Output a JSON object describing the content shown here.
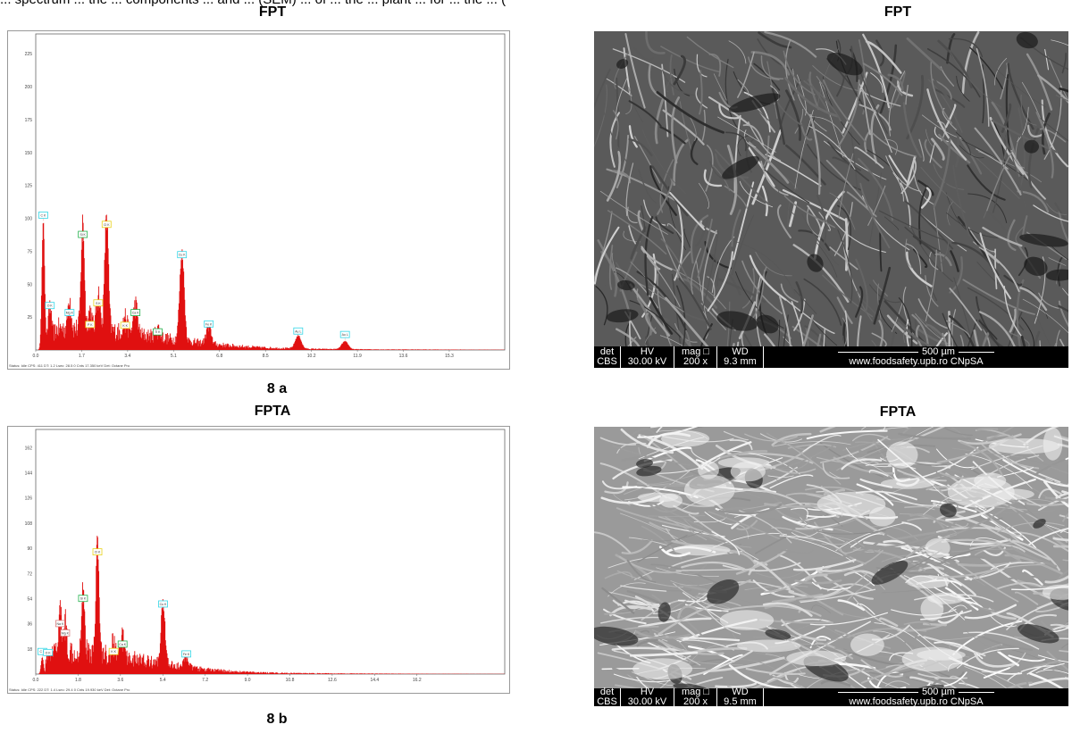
{
  "header_text": "... spectrum ... the ... components ... and ... (SEM) ... of ... the ... plant ... for ... the ... (",
  "panels": {
    "a": {
      "eds_title": "FPT",
      "sem_title": "FPT",
      "caption": "8 a",
      "status_line": "Status: Idle        CPS: 411      DT: 1.2       Lsec: 28.5     0 Cnts        17.350 keV      Det: Octane Pro",
      "sem_bar": {
        "det": "det",
        "det_v": "CBS",
        "hv": "HV",
        "hv_v": "30.00 kV",
        "mag": "mag □",
        "mag_v": "200 x",
        "wd": "WD",
        "wd_v": "9.3 mm",
        "scale": "500 µm",
        "site": "www.foodsafety.upb.ro CNpSA"
      }
    },
    "b": {
      "eds_title": "FPTA",
      "sem_title": "FPTA",
      "caption": "8 b",
      "status_line": "Status: Idle        CPS: 222      DT: 1.4       Lsec: 29.4     0 Cnts        19.930 keV      Det: Octane Pro",
      "sem_bar": {
        "det": "det",
        "det_v": "CBS",
        "hv": "HV",
        "hv_v": "30.00 kV",
        "mag": "mag □",
        "mag_v": "200 x",
        "wd": "WD",
        "wd_v": "9.5 mm",
        "scale": "500 µm",
        "site": "www.foodsafety.upb.ro CNpSA"
      }
    }
  },
  "chart_data": [
    {
      "type": "line",
      "title": "FPT",
      "xlabel": "",
      "ylabel": "",
      "x_ticks": [
        "0.0",
        "1.7",
        "3.4",
        "5.1",
        "6.8",
        "8.5",
        "10.2",
        "11.9",
        "13.6",
        "15.3"
      ],
      "y_ticks": [
        "25",
        "50",
        "75",
        "100",
        "125",
        "150",
        "175",
        "200",
        "225"
      ],
      "xlim": [
        0,
        17.35
      ],
      "ylim": [
        0,
        240
      ],
      "peaks": [
        {
          "label": "C K",
          "x": 0.28,
          "y": 98,
          "color": "cyan"
        },
        {
          "label": "O K",
          "x": 0.52,
          "y": 28,
          "color": "cyan"
        },
        {
          "label": "Mg K",
          "x": 1.25,
          "y": 24,
          "color": "cyan"
        },
        {
          "label": "Si K",
          "x": 1.74,
          "y": 82,
          "color": "green"
        },
        {
          "label": "P K",
          "x": 2.01,
          "y": 15,
          "color": "yellow"
        },
        {
          "label": "S K",
          "x": 2.31,
          "y": 30,
          "color": "yellow"
        },
        {
          "label": "Cl K",
          "x": 2.62,
          "y": 91,
          "color": "yellow"
        },
        {
          "label": "K K",
          "x": 3.31,
          "y": 13,
          "color": "yellow"
        },
        {
          "label": "Ca K",
          "x": 3.69,
          "y": 24,
          "color": "green"
        },
        {
          "label": "Ti K",
          "x": 4.51,
          "y": 8,
          "color": "green"
        },
        {
          "label": "Cu K",
          "x": 5.41,
          "y": 68,
          "color": "cyan"
        },
        {
          "label": "Fe K",
          "x": 6.4,
          "y": 14,
          "color": "cyan"
        },
        {
          "label": "Au L",
          "x": 9.71,
          "y": 10,
          "color": "cyan"
        },
        {
          "label": "Au L",
          "x": 11.44,
          "y": 6,
          "color": "cyan"
        }
      ],
      "series_label_markers": [
        "C K",
        "O K",
        "Na K",
        "Al K",
        "Mg K",
        "Si K",
        "P K",
        "S K",
        "Cl K",
        "K K",
        "Ca K",
        "Ti K",
        "Cu K",
        "Fe K",
        "Au L",
        "Au L"
      ]
    },
    {
      "type": "line",
      "title": "FPTA",
      "xlabel": "",
      "ylabel": "",
      "x_ticks": [
        "0.0",
        "1.8",
        "3.6",
        "5.4",
        "7.2",
        "9.0",
        "10.8",
        "12.6",
        "14.4",
        "16.2"
      ],
      "y_ticks": [
        "18",
        "36",
        "54",
        "72",
        "90",
        "108",
        "126",
        "144",
        "162"
      ],
      "xlim": [
        0,
        19.93
      ],
      "ylim": [
        0,
        175
      ],
      "peaks": [
        {
          "label": "C K",
          "x": 0.28,
          "y": 12,
          "color": "cyan"
        },
        {
          "label": "O K",
          "x": 0.52,
          "y": 10,
          "color": "cyan"
        },
        {
          "label": "Na K",
          "x": 1.04,
          "y": 32,
          "color": "pink"
        },
        {
          "label": "Mg K",
          "x": 1.25,
          "y": 24,
          "color": "pink"
        },
        {
          "label": "Si K",
          "x": 2.01,
          "y": 50,
          "color": "green"
        },
        {
          "label": "Cl K",
          "x": 2.62,
          "y": 82,
          "color": "yellow"
        },
        {
          "label": "K K",
          "x": 3.31,
          "y": 12,
          "color": "yellow"
        },
        {
          "label": "Ca K",
          "x": 3.69,
          "y": 16,
          "color": "green"
        },
        {
          "label": "Cu K",
          "x": 5.41,
          "y": 46,
          "color": "cyan"
        },
        {
          "label": "Fe K",
          "x": 6.4,
          "y": 9,
          "color": "cyan"
        }
      ]
    }
  ]
}
